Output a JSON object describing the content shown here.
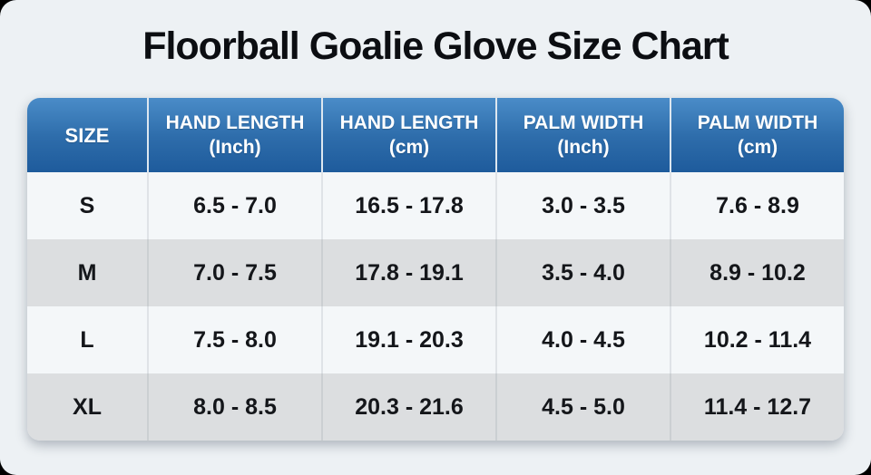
{
  "page": {
    "title": "Floorball Goalie Glove Size Chart"
  },
  "colors": {
    "page_background": "#edf1f4",
    "header_gradient_top": "#4a8cc8",
    "header_gradient_bottom": "#1e5b9c",
    "header_text": "#ffffff",
    "row_light": "#f4f7f9",
    "row_shaded": "#dcdee0",
    "body_text": "#14161a"
  },
  "table": {
    "headers": [
      {
        "label": "SIZE",
        "sublabel": ""
      },
      {
        "label": "HAND LENGTH",
        "sublabel": "(Inch)"
      },
      {
        "label": "HAND LENGTH",
        "sublabel": "(cm)"
      },
      {
        "label": "PALM WIDTH",
        "sublabel": "(Inch)"
      },
      {
        "label": "PALM WIDTH",
        "sublabel": "(cm)"
      }
    ]
  },
  "chart_data": {
    "type": "table",
    "title": "Floorball Goalie Glove Size Chart",
    "columns": [
      "SIZE",
      "HAND LENGTH (Inch)",
      "HAND LENGTH (cm)",
      "PALM WIDTH (Inch)",
      "PALM WIDTH (cm)"
    ],
    "rows": [
      [
        "S",
        "6.5 - 7.0",
        "16.5 - 17.8",
        "3.0 - 3.5",
        "7.6 - 8.9"
      ],
      [
        "M",
        "7.0 - 7.5",
        "17.8 - 19.1",
        "3.5 - 4.0",
        "8.9 - 10.2"
      ],
      [
        "L",
        "7.5 - 8.0",
        "19.1 - 20.3",
        "4.0 - 4.5",
        "10.2 - 11.4"
      ],
      [
        "XL",
        "8.0 - 8.5",
        "20.3 - 21.6",
        "4.5 - 5.0",
        "11.4 - 12.7"
      ]
    ]
  }
}
